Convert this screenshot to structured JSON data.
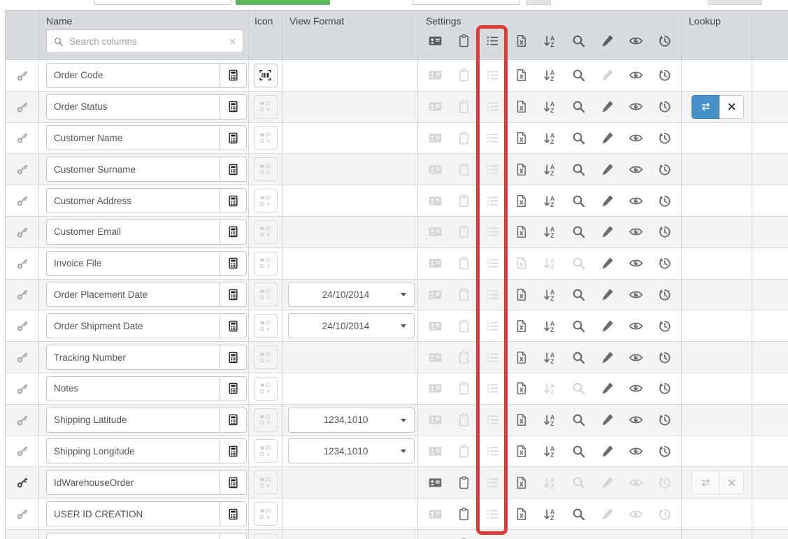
{
  "colors": {
    "accent_green": "#5cb85c",
    "highlight_red": "#dd3b3b",
    "lookup_blue": "#4791ca",
    "header_bg": "#d9dcde",
    "alt_row_bg": "#f4f4f4"
  },
  "header": {
    "name_label": "Name",
    "icon_label": "Icon",
    "view_format_label": "View Format",
    "settings_label": "Settings",
    "lookup_label": "Lookup",
    "search": {
      "placeholder": "Search columns",
      "value": ""
    },
    "settings_icons": [
      "id-card",
      "clipboard",
      "list",
      "excel-export",
      "sort-az",
      "search",
      "edit",
      "visibility",
      "history"
    ]
  },
  "rows": [
    {
      "name": "Order Code",
      "primary_key": false,
      "icon": "barcode",
      "view_format": null,
      "settings": [
        0,
        0,
        0,
        1,
        1,
        1,
        0,
        1,
        1
      ],
      "lookup": null
    },
    {
      "name": "Order Status",
      "primary_key": false,
      "icon": "icon-placeholder",
      "view_format": null,
      "settings": [
        0,
        0,
        0,
        1,
        1,
        1,
        1,
        1,
        1
      ],
      "lookup": "active"
    },
    {
      "name": "Customer Name",
      "primary_key": false,
      "icon": "icon-placeholder",
      "view_format": null,
      "settings": [
        0,
        0,
        0,
        1,
        1,
        1,
        1,
        1,
        1
      ],
      "lookup": null
    },
    {
      "name": "Customer Surname",
      "primary_key": false,
      "icon": "icon-placeholder",
      "view_format": null,
      "settings": [
        0,
        0,
        0,
        1,
        1,
        1,
        1,
        1,
        1
      ],
      "lookup": null
    },
    {
      "name": "Customer Address",
      "primary_key": false,
      "icon": "icon-placeholder",
      "view_format": null,
      "settings": [
        0,
        0,
        0,
        1,
        1,
        1,
        1,
        1,
        1
      ],
      "lookup": null
    },
    {
      "name": "Customer Email",
      "primary_key": false,
      "icon": "icon-placeholder",
      "view_format": null,
      "settings": [
        0,
        0,
        0,
        1,
        1,
        1,
        1,
        1,
        1
      ],
      "lookup": null
    },
    {
      "name": "Invoice File",
      "primary_key": false,
      "icon": "icon-placeholder",
      "view_format": null,
      "settings": [
        0,
        0,
        0,
        0,
        0,
        0,
        1,
        1,
        1
      ],
      "lookup": null
    },
    {
      "name": "Order Placement Date",
      "primary_key": false,
      "icon": "icon-placeholder",
      "view_format": "24/10/2014",
      "settings": [
        0,
        0,
        0,
        1,
        1,
        1,
        1,
        1,
        1
      ],
      "lookup": null
    },
    {
      "name": "Order Shipment Date",
      "primary_key": false,
      "icon": "icon-placeholder",
      "view_format": "24/10/2014",
      "settings": [
        0,
        0,
        0,
        1,
        1,
        1,
        1,
        1,
        1
      ],
      "lookup": null
    },
    {
      "name": "Tracking Number",
      "primary_key": false,
      "icon": "icon-placeholder",
      "view_format": null,
      "settings": [
        0,
        0,
        0,
        1,
        1,
        1,
        1,
        1,
        1
      ],
      "lookup": null
    },
    {
      "name": "Notes",
      "primary_key": false,
      "icon": "icon-placeholder",
      "view_format": null,
      "settings": [
        0,
        0,
        0,
        1,
        0,
        0,
        1,
        1,
        1
      ],
      "lookup": null
    },
    {
      "name": "Shipping Latitude",
      "primary_key": false,
      "icon": "icon-placeholder",
      "view_format": "1234,1010",
      "settings": [
        0,
        0,
        0,
        1,
        1,
        1,
        1,
        1,
        1
      ],
      "lookup": null
    },
    {
      "name": "Shipping Longitude",
      "primary_key": false,
      "icon": "icon-placeholder",
      "view_format": "1234,1010",
      "settings": [
        0,
        0,
        0,
        1,
        1,
        1,
        1,
        1,
        1
      ],
      "lookup": null
    },
    {
      "name": "IdWarehouseOrder",
      "primary_key": true,
      "icon": "icon-placeholder",
      "view_format": null,
      "settings": [
        1,
        1,
        0,
        1,
        0,
        0,
        0,
        0,
        0
      ],
      "lookup": "disabled"
    },
    {
      "name": "USER ID CREATION",
      "primary_key": false,
      "icon": "icon-placeholder",
      "view_format": null,
      "settings": [
        0,
        1,
        0,
        1,
        1,
        1,
        0,
        0,
        0
      ],
      "lookup": null
    },
    {
      "name": "",
      "primary_key": false,
      "icon": "icon-placeholder",
      "view_format": null,
      "settings": [
        0,
        1,
        0,
        1,
        1,
        1,
        0,
        0,
        0
      ],
      "lookup": null
    }
  ]
}
